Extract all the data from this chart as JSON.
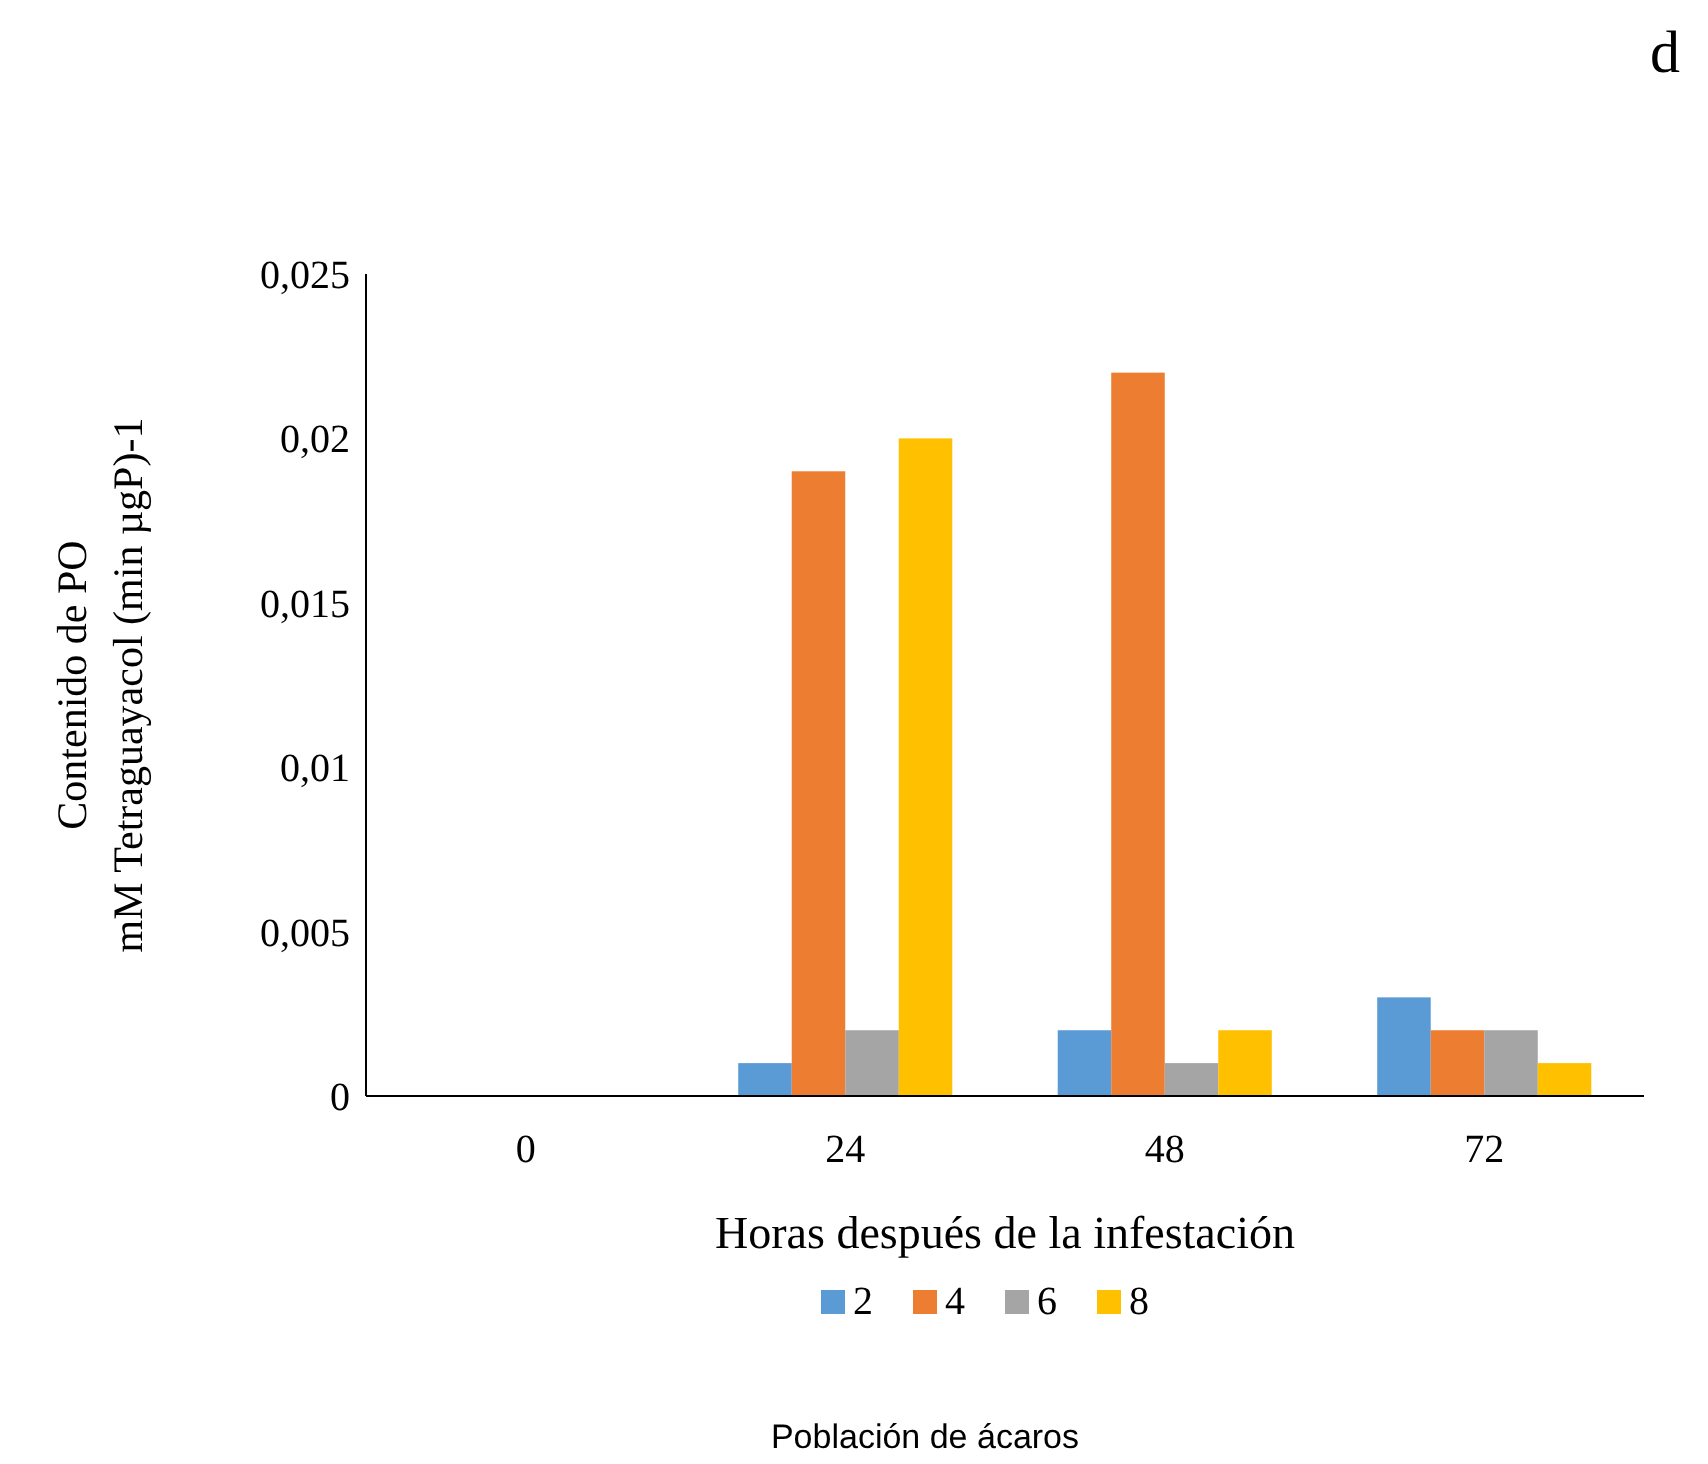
{
  "chart_data": {
    "type": "bar",
    "annotations": [
      "d"
    ],
    "xlabel": "Horas después de la infestación",
    "ylabel": "Contenido de PO\nmM Tetraguayacol (min µgP)-1",
    "legend_title": "Población de ácaros",
    "categories": [
      "0",
      "24",
      "48",
      "72"
    ],
    "series": [
      {
        "name": "2",
        "color": "#5b9bd5",
        "values": [
          0,
          0.001,
          0.002,
          0.003
        ]
      },
      {
        "name": "4",
        "color": "#ed7d31",
        "values": [
          0,
          0.019,
          0.022,
          0.002
        ]
      },
      {
        "name": "6",
        "color": "#a5a5a5",
        "values": [
          0,
          0.002,
          0.001,
          0.002
        ]
      },
      {
        "name": "8",
        "color": "#ffc000",
        "values": [
          0,
          0.02,
          0.002,
          0.001
        ]
      }
    ],
    "ylim": [
      0,
      0.025
    ],
    "yticks": [
      {
        "value": 0,
        "label": "0"
      },
      {
        "value": 0.005,
        "label": "0,005"
      },
      {
        "value": 0.01,
        "label": "0,01"
      },
      {
        "value": 0.015,
        "label": "0,015"
      },
      {
        "value": 0.02,
        "label": "0,02"
      },
      {
        "value": 0.025,
        "label": "0,025"
      }
    ],
    "grid": false,
    "legend": "bottom"
  }
}
